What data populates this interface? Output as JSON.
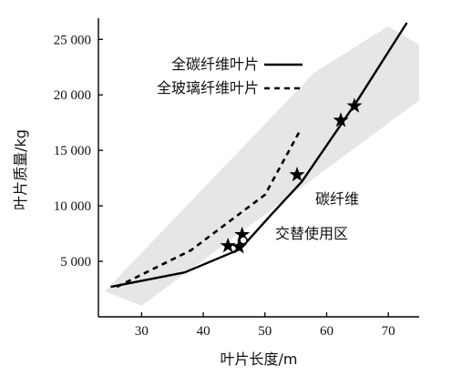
{
  "chart_data": {
    "type": "line",
    "xlabel": "叶片长度/m",
    "ylabel": "叶片质量/kg",
    "xlim": [
      23,
      75
    ],
    "ylim": [
      0,
      26500
    ],
    "x_ticks": [
      30,
      40,
      50,
      60,
      70
    ],
    "x_tick_labels": [
      "30",
      "40",
      "50",
      "60",
      "70"
    ],
    "y_ticks": [
      5000,
      10000,
      15000,
      20000,
      25000
    ],
    "y_tick_labels": [
      "5 000",
      "10 000",
      "15 000",
      "20 000",
      "25 000"
    ],
    "legend_position": "top-center",
    "series": [
      {
        "name": "全碳纤维叶片",
        "style": "solid",
        "color": "#000000",
        "points": [
          [
            25,
            2700
          ],
          [
            37,
            4000
          ],
          [
            46,
            6100
          ],
          [
            51,
            9200
          ],
          [
            56,
            12200
          ],
          [
            65,
            19500
          ],
          [
            73,
            26500
          ]
        ]
      },
      {
        "name": "全玻璃纤维叶片",
        "style": "dashed",
        "color": "#000000",
        "points": [
          [
            26,
            2700
          ],
          [
            38,
            6000
          ],
          [
            50,
            11000
          ],
          [
            55.5,
            16600
          ]
        ]
      }
    ],
    "markers": {
      "stars": [
        [
          44,
          6400
        ],
        [
          45.8,
          6300
        ],
        [
          46.3,
          7400
        ],
        [
          55.2,
          12800
        ],
        [
          62.3,
          17700
        ],
        [
          64.5,
          19000
        ]
      ],
      "circles": [
        [
          46.5,
          6900
        ]
      ]
    },
    "region": {
      "label_line1": "碳纤维",
      "label_line2": "交替使用区",
      "color": "#e6e6e6",
      "polygon": [
        [
          24,
          2300
        ],
        [
          30,
          1000
        ],
        [
          75,
          19500
        ],
        [
          75,
          24500
        ],
        [
          70,
          26200
        ],
        [
          58,
          22000
        ]
      ]
    }
  }
}
